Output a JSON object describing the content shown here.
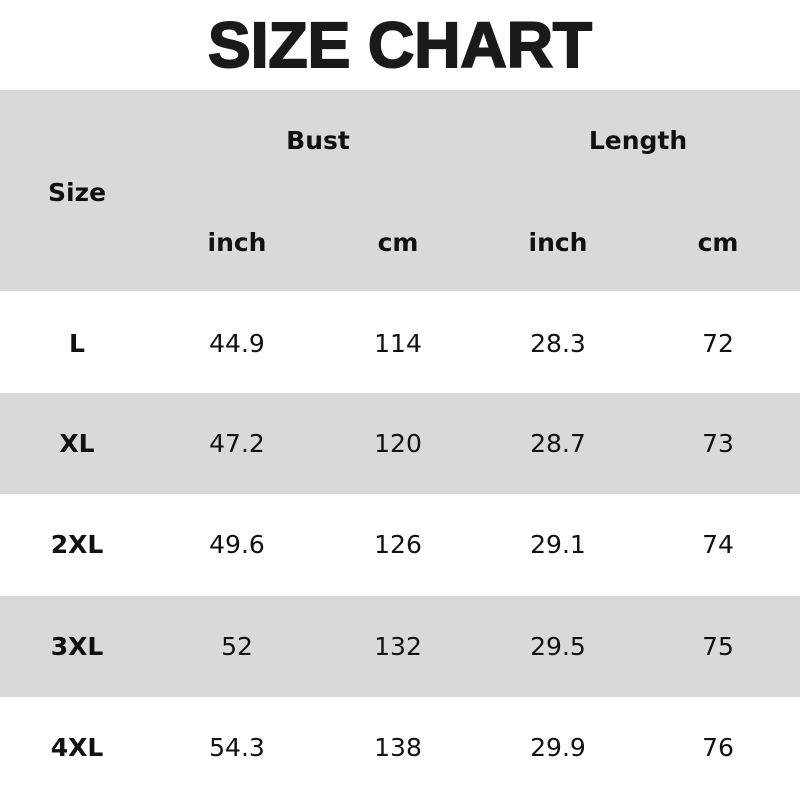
{
  "title": "SIZE CHART",
  "header": {
    "size": "Size",
    "bust": "Bust",
    "length": "Length",
    "units": [
      "inch",
      "cm",
      "inch",
      "cm"
    ]
  },
  "rows": [
    {
      "size": "L",
      "bust_inch": "44.9",
      "bust_cm": "114",
      "length_inch": "28.3",
      "length_cm": "72"
    },
    {
      "size": "XL",
      "bust_inch": "47.2",
      "bust_cm": "120",
      "length_inch": "28.7",
      "length_cm": "73"
    },
    {
      "size": "2XL",
      "bust_inch": "49.6",
      "bust_cm": "126",
      "length_inch": "29.1",
      "length_cm": "74"
    },
    {
      "size": "3XL",
      "bust_inch": "52",
      "bust_cm": "132",
      "length_inch": "29.5",
      "length_cm": "75"
    },
    {
      "size": "4XL",
      "bust_inch": "54.3",
      "bust_cm": "138",
      "length_inch": "29.9",
      "length_cm": "76"
    }
  ],
  "colors": {
    "band": "#d9d9d9",
    "text": "#111111"
  }
}
